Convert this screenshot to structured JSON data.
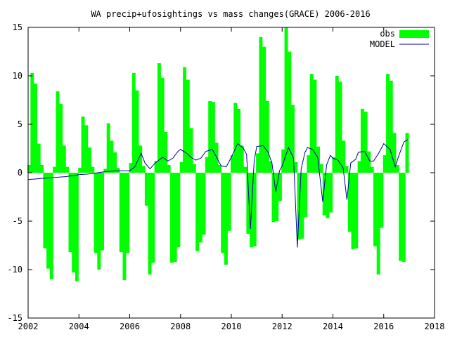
{
  "chart_data": {
    "type": "bar",
    "title": "WA precip+ufosightings vs mass changes(GRACE) 2006-2016",
    "xlabel": "",
    "ylabel": "",
    "xlim": [
      2002,
      2018
    ],
    "ylim": [
      -15,
      15
    ],
    "x_ticks": [
      "2002",
      "2004",
      "2006",
      "2008",
      "2010",
      "2012",
      "2014",
      "2016",
      "2018"
    ],
    "y_ticks": [
      "-15",
      "-10",
      "-5",
      "0",
      "5",
      "10",
      "15"
    ],
    "grid": false,
    "legend": "top-right",
    "colors": {
      "obs": "#00ff00",
      "model": "#0000a0",
      "axes": "#000000"
    },
    "series": [
      {
        "name": "obs",
        "kind": "bar",
        "x": [
          2002.0,
          2002.12,
          2002.25,
          2002.38,
          2002.5,
          2002.62,
          2002.75,
          2002.88,
          2003.0,
          2003.12,
          2003.25,
          2003.38,
          2003.5,
          2003.62,
          2003.75,
          2003.88,
          2004.0,
          2004.12,
          2004.25,
          2004.38,
          2004.5,
          2004.62,
          2004.75,
          2004.88,
          2005.0,
          2005.12,
          2005.25,
          2005.38,
          2005.5,
          2005.62,
          2005.75,
          2005.88,
          2006.0,
          2006.12,
          2006.25,
          2006.38,
          2006.5,
          2006.62,
          2006.75,
          2006.88,
          2007.0,
          2007.12,
          2007.25,
          2007.38,
          2007.5,
          2007.62,
          2007.75,
          2007.88,
          2008.0,
          2008.12,
          2008.25,
          2008.38,
          2008.5,
          2008.62,
          2008.75,
          2008.88,
          2009.0,
          2009.12,
          2009.25,
          2009.38,
          2009.5,
          2009.62,
          2009.75,
          2009.88,
          2010.0,
          2010.12,
          2010.25,
          2010.38,
          2010.5,
          2010.62,
          2010.75,
          2010.88,
          2011.0,
          2011.12,
          2011.25,
          2011.38,
          2011.5,
          2011.62,
          2011.75,
          2011.88,
          2012.0,
          2012.12,
          2012.25,
          2012.38,
          2012.5,
          2012.62,
          2012.75,
          2012.88,
          2013.0,
          2013.12,
          2013.25,
          2013.38,
          2013.5,
          2013.62,
          2013.75,
          2013.88,
          2014.0,
          2014.12,
          2014.25,
          2014.38,
          2014.5,
          2014.62,
          2014.75,
          2014.88,
          2015.0,
          2015.12,
          2015.25,
          2015.38,
          2015.5,
          2015.62,
          2015.75,
          2015.88,
          2016.0,
          2016.12,
          2016.25,
          2016.38,
          2016.5,
          2016.62,
          2016.75,
          2016.88
        ],
        "values": [
          0.8,
          10.3,
          9.2,
          3.0,
          0.8,
          -7.8,
          -9.9,
          -11.0,
          0.6,
          8.4,
          7.1,
          2.8,
          0.6,
          -8.2,
          -10.3,
          -11.2,
          0.5,
          5.8,
          4.9,
          2.6,
          0.6,
          -8.3,
          -10.0,
          -8.0,
          0.4,
          5.1,
          3.3,
          2.1,
          0.5,
          -8.2,
          -11.1,
          -8.3,
          1.0,
          10.3,
          8.5,
          2.8,
          0.7,
          -3.4,
          -10.5,
          -9.3,
          1.2,
          11.3,
          9.8,
          4.2,
          0.8,
          -9.3,
          -9.2,
          -7.7,
          1.1,
          10.9,
          9.6,
          4.6,
          0.9,
          -8.1,
          -7.2,
          -6.4,
          1.6,
          7.4,
          7.3,
          3.1,
          0.8,
          -8.3,
          -9.5,
          -6.0,
          1.8,
          7.2,
          6.6,
          2.8,
          0.6,
          -6.3,
          -7.7,
          -7.6,
          2.0,
          14.0,
          13.0,
          7.4,
          1.2,
          -5.1,
          -5.0,
          -2.9,
          2.4,
          15.0,
          12.5,
          7.0,
          1.1,
          -6.9,
          -6.8,
          -4.6,
          1.8,
          10.2,
          9.6,
          2.7,
          0.9,
          -4.4,
          -4.7,
          -4.1,
          1.6,
          10.0,
          9.4,
          3.3,
          0.7,
          -6.1,
          -7.9,
          -7.8,
          1.2,
          6.6,
          6.3,
          2.2,
          0.6,
          -7.6,
          -10.5,
          -5.7,
          1.8,
          10.2,
          9.5,
          4.1,
          0.8,
          -9.1,
          -9.2,
          4.1
        ]
      },
      {
        "name": "MODEL",
        "kind": "line",
        "x": [
          2002.0,
          2002.5,
          2003.0,
          2003.5,
          2004.0,
          2004.5,
          2005.0,
          2005.5,
          2006.0,
          2006.2,
          2006.45,
          2006.6,
          2006.8,
          2007.0,
          2007.3,
          2007.5,
          2007.7,
          2007.9,
          2008.0,
          2008.25,
          2008.4,
          2008.6,
          2008.8,
          2009.0,
          2009.25,
          2009.4,
          2009.6,
          2009.8,
          2010.0,
          2010.25,
          2010.45,
          2010.6,
          2010.75,
          2010.9,
          2011.0,
          2011.25,
          2011.45,
          2011.6,
          2011.75,
          2011.9,
          2012.0,
          2012.25,
          2012.45,
          2012.6,
          2012.75,
          2012.9,
          2013.0,
          2013.2,
          2013.4,
          2013.6,
          2013.75,
          2013.9,
          2014.0,
          2014.2,
          2014.4,
          2014.55,
          2014.7,
          2014.9,
          2015.0,
          2015.25,
          2015.45,
          2015.6,
          2015.8,
          2016.0,
          2016.25,
          2016.45,
          2016.6,
          2016.8,
          2016.95
        ],
        "values": [
          -0.7,
          -0.6,
          -0.5,
          -0.4,
          -0.2,
          -0.1,
          0.1,
          0.2,
          0.2,
          0.6,
          2.0,
          1.0,
          0.4,
          1.0,
          1.6,
          1.2,
          1.5,
          2.2,
          2.4,
          2.0,
          1.6,
          1.3,
          1.5,
          2.2,
          2.4,
          1.7,
          0.7,
          0.6,
          1.6,
          3.0,
          2.6,
          1.9,
          -5.8,
          1.2,
          2.7,
          2.8,
          2.1,
          1.0,
          -2.0,
          0.2,
          0.7,
          2.6,
          1.5,
          -7.7,
          0.4,
          2.1,
          2.6,
          2.4,
          1.6,
          -3.0,
          0.8,
          1.8,
          1.5,
          1.3,
          0.5,
          -2.8,
          1.0,
          1.4,
          2.1,
          2.2,
          1.2,
          1.2,
          2.0,
          3.0,
          2.4,
          0.6,
          1.8,
          3.2,
          3.4
        ]
      }
    ]
  }
}
